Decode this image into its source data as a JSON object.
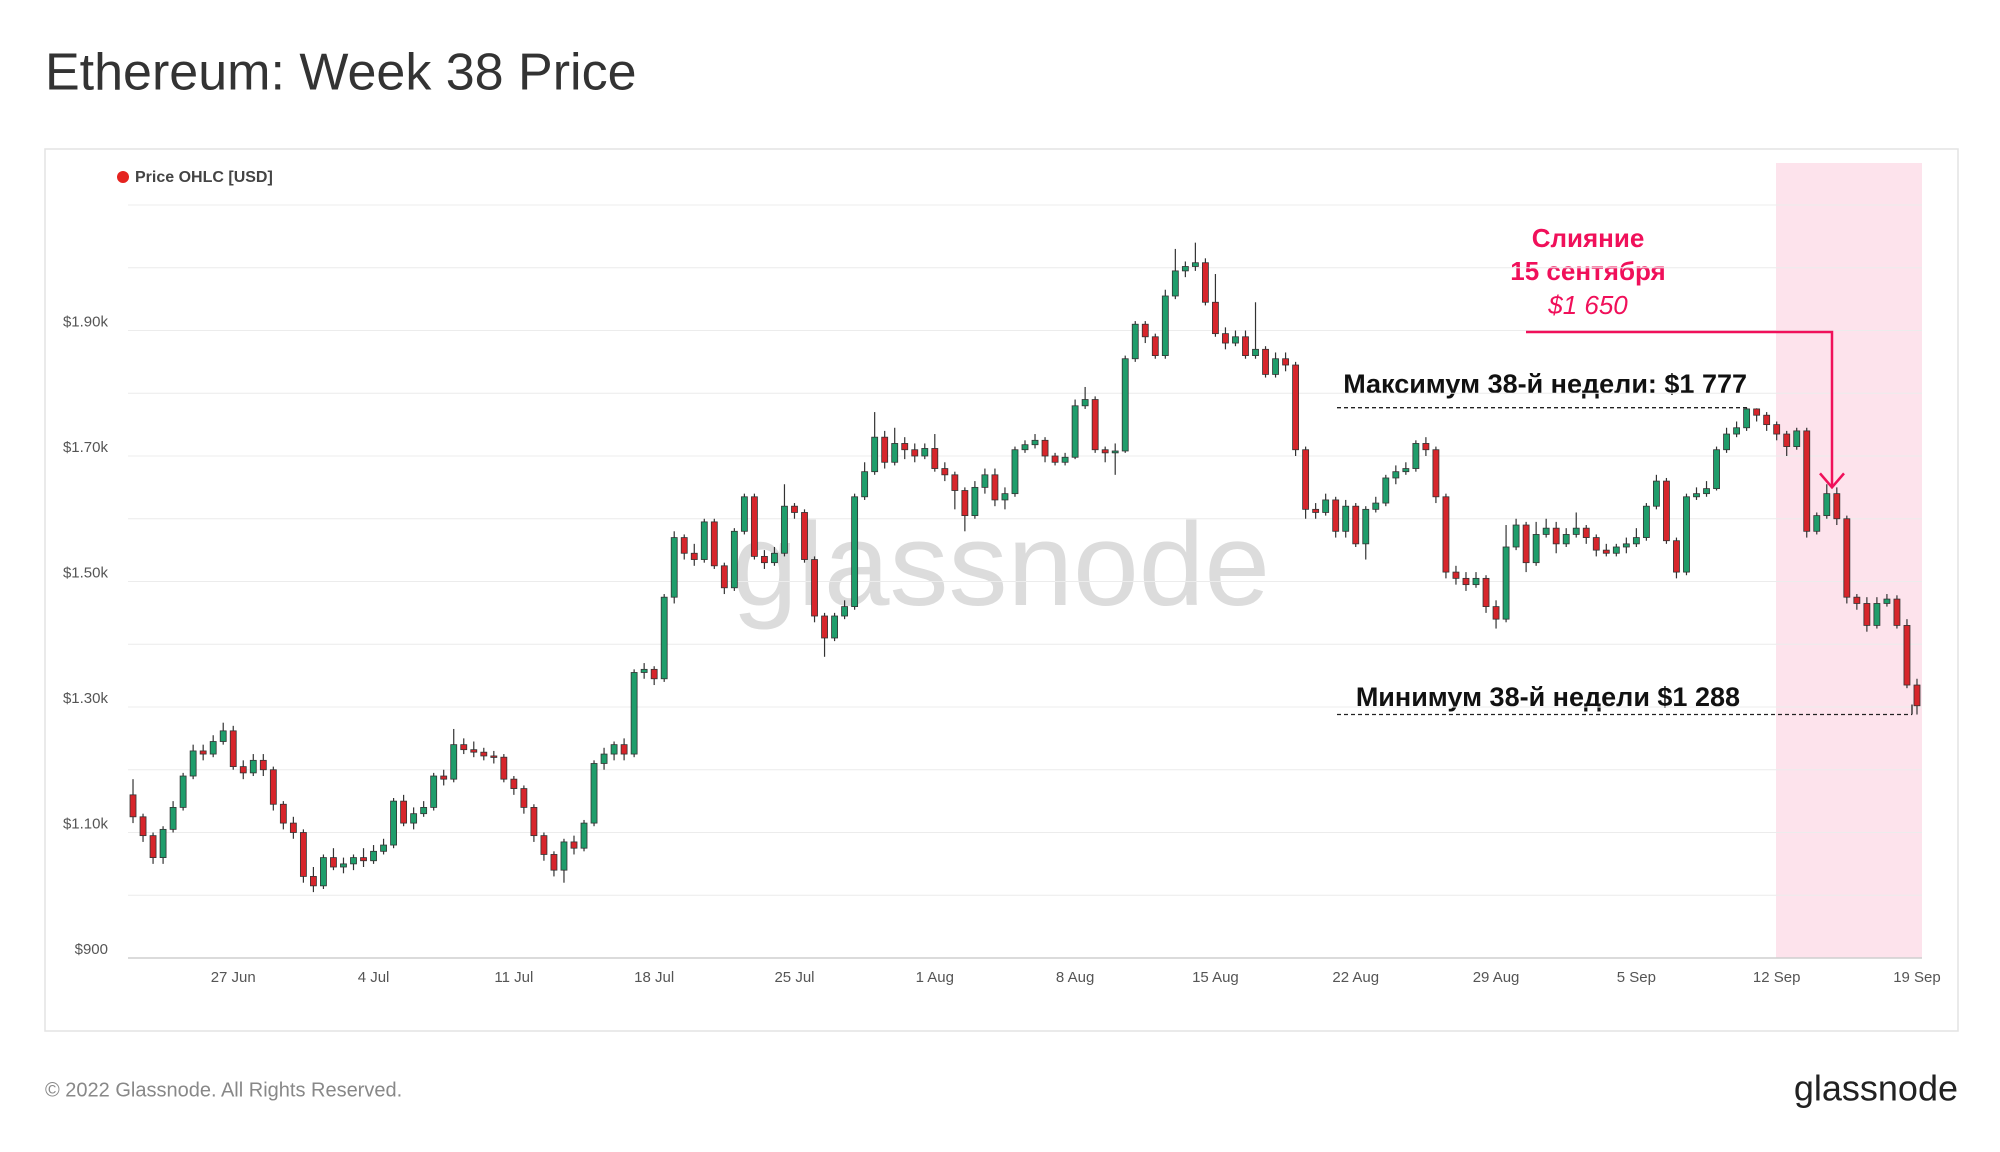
{
  "chart_data": {
    "type": "candlestick",
    "title": "Ethereum: Week 38 Price",
    "series": [
      {
        "name": "Price OHLC [USD]",
        "color": "#e5231f",
        "open": [
          1160,
          1125,
          1095,
          1060,
          1105,
          1140,
          1190,
          1230,
          1225,
          1245,
          1262,
          1205,
          1195,
          1215,
          1200,
          1145,
          1115,
          1100,
          1030,
          1015,
          1060,
          1045,
          1050,
          1060,
          1055,
          1070,
          1080,
          1150,
          1115,
          1130,
          1140,
          1190,
          1185,
          1240,
          1232,
          1228,
          1222,
          1220,
          1185,
          1170,
          1140,
          1095,
          1065,
          1040,
          1085,
          1075,
          1115,
          1210,
          1225,
          1240,
          1225,
          1355,
          1360,
          1345,
          1475,
          1570,
          1545,
          1535,
          1595,
          1525,
          1490,
          1580,
          1635,
          1540,
          1530,
          1545,
          1620,
          1610,
          1535,
          1445,
          1410,
          1445,
          1460,
          1635,
          1675,
          1730,
          1690,
          1720,
          1710,
          1700,
          1712,
          1680,
          1670,
          1645,
          1605,
          1650,
          1670,
          1630,
          1640,
          1710,
          1718,
          1725,
          1700,
          1690,
          1698,
          1780,
          1790,
          1710,
          1705,
          1708,
          1855,
          1910,
          1890,
          1860,
          1955,
          1995,
          2002,
          2008,
          1945,
          1895,
          1880,
          1890,
          1860,
          1870,
          1830,
          1855,
          1845,
          1710,
          1615,
          1610,
          1630,
          1580,
          1620,
          1560,
          1615,
          1625,
          1665,
          1675,
          1680,
          1720,
          1710,
          1635,
          1515,
          1505,
          1495,
          1505,
          1460,
          1440,
          1555,
          1590,
          1530,
          1575,
          1585,
          1560,
          1575,
          1585,
          1570,
          1550,
          1545,
          1555,
          1560,
          1570,
          1620,
          1660,
          1565,
          1515,
          1635,
          1640,
          1648,
          1710,
          1735,
          1745,
          1775,
          1765,
          1750,
          1735,
          1715,
          1740,
          1580,
          1605,
          1640,
          1600,
          1475,
          1465,
          1430,
          1465,
          1472,
          1430,
          1335
        ],
        "high": [
          1185,
          1130,
          1100,
          1110,
          1150,
          1195,
          1240,
          1240,
          1255,
          1275,
          1270,
          1215,
          1225,
          1225,
          1205,
          1150,
          1125,
          1105,
          1045,
          1065,
          1075,
          1060,
          1065,
          1075,
          1080,
          1090,
          1155,
          1160,
          1140,
          1150,
          1195,
          1200,
          1265,
          1250,
          1245,
          1235,
          1230,
          1225,
          1190,
          1175,
          1145,
          1100,
          1070,
          1090,
          1095,
          1120,
          1215,
          1235,
          1245,
          1250,
          1360,
          1370,
          1365,
          1480,
          1580,
          1575,
          1560,
          1600,
          1600,
          1530,
          1585,
          1640,
          1640,
          1550,
          1555,
          1655,
          1625,
          1615,
          1540,
          1450,
          1450,
          1470,
          1640,
          1690,
          1770,
          1740,
          1745,
          1730,
          1720,
          1720,
          1735,
          1690,
          1675,
          1650,
          1660,
          1680,
          1680,
          1650,
          1715,
          1725,
          1735,
          1730,
          1705,
          1705,
          1790,
          1810,
          1795,
          1715,
          1720,
          1860,
          1915,
          1915,
          1895,
          1965,
          2030,
          2010,
          2040,
          2015,
          1990,
          1905,
          1900,
          1900,
          1945,
          1875,
          1865,
          1865,
          1850,
          1715,
          1625,
          1640,
          1635,
          1630,
          1625,
          1620,
          1635,
          1670,
          1685,
          1690,
          1725,
          1730,
          1715,
          1640,
          1525,
          1515,
          1515,
          1510,
          1470,
          1590,
          1600,
          1595,
          1595,
          1600,
          1595,
          1585,
          1610,
          1590,
          1575,
          1560,
          1560,
          1570,
          1585,
          1625,
          1670,
          1665,
          1570,
          1640,
          1650,
          1660,
          1715,
          1745,
          1755,
          1777,
          1776,
          1770,
          1755,
          1740,
          1745,
          1745,
          1610,
          1655,
          1650,
          1605,
          1480,
          1475,
          1475,
          1480,
          1478,
          1440,
          1345
        ],
        "low": [
          1115,
          1085,
          1050,
          1050,
          1100,
          1135,
          1185,
          1215,
          1220,
          1240,
          1200,
          1185,
          1190,
          1190,
          1135,
          1105,
          1090,
          1020,
          1005,
          1010,
          1040,
          1035,
          1040,
          1045,
          1050,
          1065,
          1075,
          1110,
          1105,
          1125,
          1135,
          1175,
          1180,
          1225,
          1220,
          1215,
          1210,
          1180,
          1160,
          1130,
          1085,
          1055,
          1030,
          1020,
          1065,
          1070,
          1110,
          1200,
          1215,
          1215,
          1220,
          1345,
          1335,
          1340,
          1465,
          1535,
          1525,
          1530,
          1520,
          1480,
          1485,
          1575,
          1535,
          1520,
          1525,
          1540,
          1600,
          1530,
          1435,
          1380,
          1405,
          1440,
          1455,
          1630,
          1670,
          1680,
          1685,
          1695,
          1690,
          1695,
          1675,
          1660,
          1615,
          1580,
          1600,
          1640,
          1620,
          1615,
          1635,
          1705,
          1712,
          1690,
          1685,
          1685,
          1695,
          1775,
          1705,
          1690,
          1670,
          1705,
          1850,
          1880,
          1855,
          1855,
          1950,
          1985,
          1995,
          1940,
          1890,
          1870,
          1875,
          1855,
          1855,
          1825,
          1825,
          1835,
          1700,
          1600,
          1600,
          1605,
          1570,
          1570,
          1555,
          1535,
          1610,
          1620,
          1655,
          1670,
          1675,
          1700,
          1625,
          1505,
          1495,
          1485,
          1490,
          1450,
          1425,
          1435,
          1550,
          1515,
          1525,
          1570,
          1545,
          1555,
          1570,
          1560,
          1540,
          1540,
          1540,
          1545,
          1555,
          1565,
          1615,
          1560,
          1505,
          1510,
          1630,
          1635,
          1645,
          1705,
          1730,
          1740,
          1755,
          1740,
          1725,
          1700,
          1710,
          1570,
          1575,
          1600,
          1590,
          1465,
          1455,
          1420,
          1425,
          1460,
          1425,
          1330,
          1288
        ],
        "close": [
          1125,
          1095,
          1060,
          1105,
          1140,
          1190,
          1230,
          1225,
          1245,
          1262,
          1205,
          1195,
          1215,
          1200,
          1145,
          1115,
          1100,
          1030,
          1015,
          1060,
          1045,
          1050,
          1060,
          1055,
          1070,
          1080,
          1150,
          1115,
          1130,
          1140,
          1190,
          1185,
          1240,
          1232,
          1228,
          1222,
          1220,
          1185,
          1170,
          1140,
          1095,
          1065,
          1040,
          1085,
          1075,
          1115,
          1210,
          1225,
          1240,
          1225,
          1355,
          1360,
          1345,
          1475,
          1570,
          1545,
          1535,
          1595,
          1525,
          1490,
          1580,
          1635,
          1540,
          1530,
          1545,
          1620,
          1610,
          1535,
          1445,
          1410,
          1445,
          1460,
          1635,
          1675,
          1730,
          1690,
          1720,
          1710,
          1700,
          1712,
          1680,
          1670,
          1645,
          1605,
          1650,
          1670,
          1630,
          1640,
          1710,
          1718,
          1725,
          1700,
          1690,
          1698,
          1780,
          1790,
          1710,
          1705,
          1708,
          1855,
          1910,
          1890,
          1860,
          1955,
          1995,
          2002,
          2008,
          1945,
          1895,
          1880,
          1890,
          1860,
          1870,
          1830,
          1855,
          1845,
          1710,
          1615,
          1610,
          1630,
          1580,
          1620,
          1560,
          1615,
          1625,
          1665,
          1675,
          1680,
          1720,
          1710,
          1635,
          1515,
          1505,
          1495,
          1505,
          1460,
          1440,
          1555,
          1590,
          1530,
          1575,
          1585,
          1560,
          1575,
          1585,
          1570,
          1550,
          1545,
          1555,
          1560,
          1570,
          1620,
          1660,
          1565,
          1515,
          1635,
          1640,
          1648,
          1710,
          1735,
          1745,
          1775,
          1765,
          1750,
          1735,
          1715,
          1740,
          1580,
          1605,
          1640,
          1600,
          1475,
          1465,
          1430,
          1465,
          1472,
          1430,
          1335,
          1302
        ]
      }
    ],
    "categories": [
      null,
      null,
      null,
      null,
      null,
      null,
      null,
      null,
      null,
      null,
      "27 Jun",
      null,
      null,
      null,
      null,
      null,
      null,
      null,
      null,
      null,
      null,
      null,
      null,
      null,
      "4 Jul",
      null,
      null,
      null,
      null,
      null,
      null,
      null,
      null,
      null,
      null,
      null,
      null,
      null,
      "11 Jul",
      null,
      null,
      null,
      null,
      null,
      null,
      null,
      null,
      null,
      null,
      null,
      null,
      null,
      "18 Jul",
      null,
      null,
      null,
      null,
      null,
      null,
      null,
      null,
      null,
      null,
      null,
      null,
      null,
      "25 Jul",
      null,
      null,
      null,
      null,
      null,
      null,
      null,
      null,
      null,
      null,
      null,
      null,
      null,
      "1 Aug",
      null,
      null,
      null,
      null,
      null,
      null,
      null,
      null,
      null,
      null,
      null,
      null,
      null,
      "8 Aug",
      null,
      null,
      null,
      null,
      null,
      null,
      null,
      null,
      null,
      null,
      null,
      null,
      null,
      "15 Aug",
      null,
      null,
      null,
      null,
      null,
      null,
      null,
      null,
      null,
      null,
      null,
      null,
      null,
      "22 Aug",
      null,
      null,
      null,
      null,
      null,
      null,
      null,
      null,
      null,
      null,
      null,
      null,
      null,
      "29 Aug",
      null,
      null,
      null,
      null,
      null,
      null,
      null,
      null,
      null,
      null,
      null,
      null,
      null,
      "5 Sep",
      null,
      null,
      null,
      null,
      null,
      null,
      null,
      null,
      null,
      null,
      null,
      null,
      null,
      "12 Sep",
      null,
      null,
      null,
      null,
      null,
      null,
      null,
      null,
      null,
      null,
      null,
      null,
      null,
      "19 Sep"
    ],
    "up_color": "#1f9d6b",
    "down_color": "#d7252b",
    "ylim": [
      900,
      2100
    ],
    "yticks": [
      {
        "value": 900,
        "label": "$900"
      },
      {
        "value": 1100,
        "label": "$1.10k"
      },
      {
        "value": 1300,
        "label": "$1.30k"
      },
      {
        "value": 1500,
        "label": "$1.50k"
      },
      {
        "value": 1700,
        "label": "$1.70k"
      },
      {
        "value": 1900,
        "label": "$1.90k"
      }
    ],
    "minor_grid": [
      1000,
      1200,
      1400,
      1600,
      1800,
      2000,
      2100
    ],
    "grid": true,
    "annotations": {
      "event": {
        "lines": [
          "Слияние",
          "15 сентября"
        ],
        "price_label": "$1 650",
        "value": 1650,
        "color": "#f0105a"
      },
      "week_high": {
        "label": "Максимум 38-й недели: $1 777",
        "value": 1777
      },
      "week_low": {
        "label": "Минимум 38-й недели $1 288",
        "value": 1288
      }
    }
  },
  "watermark": "glassnode",
  "footer": "© 2022 Glassnode. All Rights Reserved.",
  "logo": "glassnode"
}
